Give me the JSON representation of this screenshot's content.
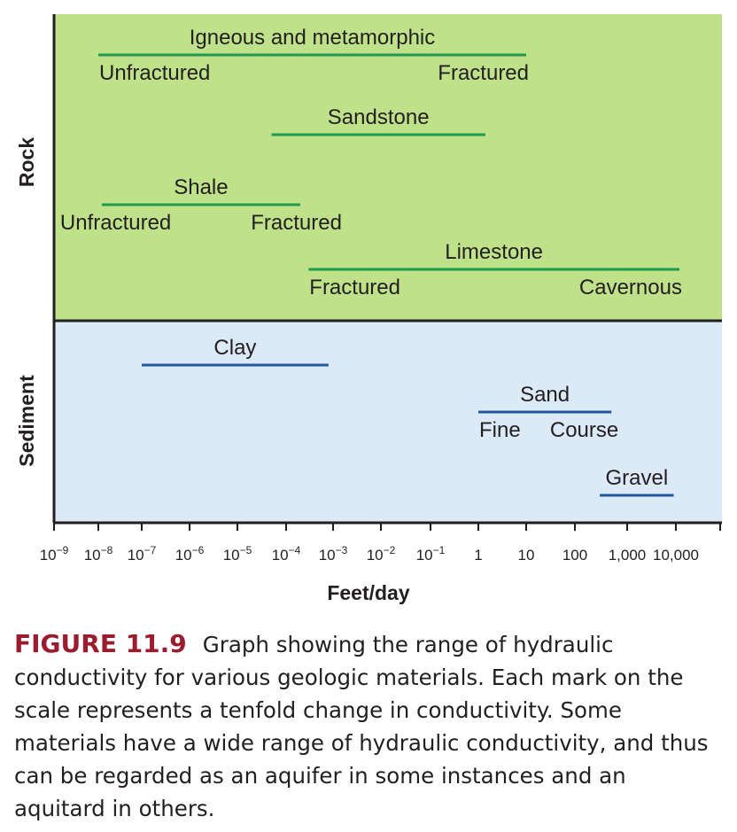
{
  "chart_data": {
    "type": "range",
    "xlabel": "Feet/day",
    "x_scale": "log",
    "xlim": [
      1e-09,
      100000
    ],
    "x_ticks": [
      {
        "value": 1e-09,
        "base": "10",
        "exp": "−9"
      },
      {
        "value": 1e-08,
        "base": "10",
        "exp": "−8"
      },
      {
        "value": 1e-07,
        "base": "10",
        "exp": "−7"
      },
      {
        "value": 1e-06,
        "base": "10",
        "exp": "−6"
      },
      {
        "value": 1e-05,
        "base": "10",
        "exp": "−5"
      },
      {
        "value": 0.0001,
        "base": "10",
        "exp": "−4"
      },
      {
        "value": 0.001,
        "base": "10",
        "exp": "−3"
      },
      {
        "value": 0.01,
        "base": "10",
        "exp": "−2"
      },
      {
        "value": 0.1,
        "base": "10",
        "exp": "−1"
      },
      {
        "value": 1,
        "base": "1",
        "exp": ""
      },
      {
        "value": 10,
        "base": "10",
        "exp": ""
      },
      {
        "value": 100,
        "base": "100",
        "exp": ""
      },
      {
        "value": 1000,
        "base": "1,000",
        "exp": ""
      },
      {
        "value": 10000,
        "base": "10,000",
        "exp": ""
      },
      {
        "value": 100000,
        "base": "",
        "exp": ""
      }
    ],
    "bands": [
      {
        "label": "Rock",
        "color": "#bfe18a"
      },
      {
        "label": "Sediment",
        "color": "#dce9f7"
      }
    ],
    "series": [
      {
        "name": "Igneous and metamorphic",
        "band": "Rock",
        "low": 1e-08,
        "high": 10,
        "low_label": "Unfractured",
        "high_label": "Fractured",
        "color": "#1f9a4f"
      },
      {
        "name": "Sandstone",
        "band": "Rock",
        "low": 5e-05,
        "high": 1.4,
        "low_label": "",
        "high_label": "",
        "color": "#1f9a4f"
      },
      {
        "name": "Shale",
        "band": "Rock",
        "low": 1.2e-08,
        "high": 0.0002,
        "low_label": "Unfractured",
        "high_label": "Fractured",
        "color": "#1f9a4f"
      },
      {
        "name": "Limestone",
        "band": "Rock",
        "low": 0.0003,
        "high": 12000,
        "low_label": "Fractured",
        "high_label": "Cavernous",
        "color": "#1f9a4f"
      },
      {
        "name": "Clay",
        "band": "Sediment",
        "low": 1e-07,
        "high": 0.0008,
        "low_label": "",
        "high_label": "",
        "color": "#1f5a9e"
      },
      {
        "name": "Sand",
        "band": "Sediment",
        "low": 1,
        "high": 500,
        "low_label": "Fine",
        "high_label": "Course",
        "color": "#1f5a9e"
      },
      {
        "name": "Gravel",
        "band": "Sediment",
        "low": 300,
        "high": 9000,
        "low_label": "",
        "high_label": "",
        "color": "#1f5a9e"
      }
    ],
    "grid": false
  },
  "caption": {
    "number": "FIGURE 11.9",
    "text": "Graph showing the range of hydraulic conductivity for various geologic materials. Each mark on the scale represents a tenfold change in conductivity. Some materials have a wide range of hydraulic conductivity, and thus can be regarded as an aquifer in some instances and an aquitard in others."
  }
}
